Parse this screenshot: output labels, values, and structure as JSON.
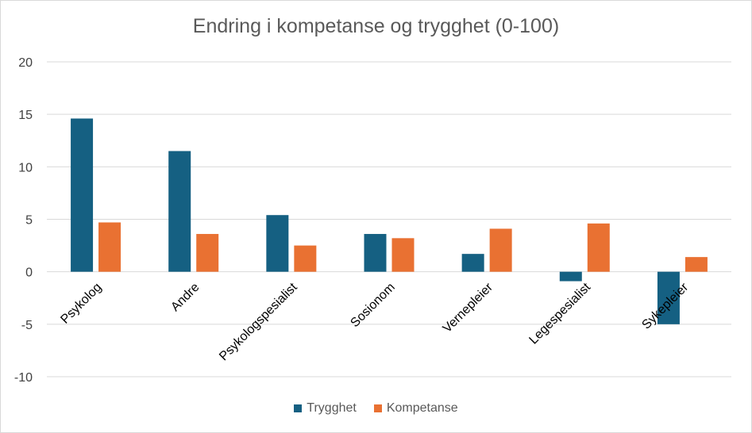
{
  "chart_data": {
    "type": "bar",
    "title": "Endring i kompetanse og trygghet (0-100)",
    "xlabel": "",
    "ylabel": "",
    "ylim": [
      -10,
      20
    ],
    "yticks": [
      -10,
      -5,
      0,
      5,
      10,
      15,
      20
    ],
    "grid": true,
    "legend_position": "bottom",
    "categories": [
      "Psykolog",
      "Andre",
      "Psykologspesialist",
      "Sosionom",
      "Vernepleier",
      "Legespesialist",
      "Sykepleier"
    ],
    "series": [
      {
        "name": "Trygghet",
        "color": "#156082",
        "values": [
          14.6,
          11.5,
          5.4,
          3.6,
          1.7,
          -0.9,
          -5.0
        ]
      },
      {
        "name": "Kompetanse",
        "color": "#e97132",
        "values": [
          4.7,
          3.6,
          2.5,
          3.2,
          4.1,
          4.6,
          1.4
        ]
      }
    ]
  }
}
